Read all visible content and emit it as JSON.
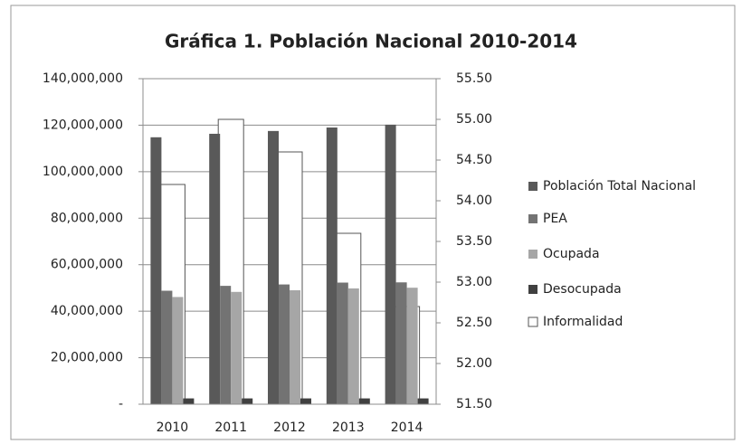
{
  "chart_data": {
    "type": "bar",
    "title": "Gráfica 1. Población Nacional 2010-2014",
    "categories": [
      "2010",
      "2011",
      "2012",
      "2013",
      "2014"
    ],
    "series": [
      {
        "name": "Población Total Nacional",
        "color": "#595959",
        "values": [
          114800000,
          116300000,
          117500000,
          119000000,
          120200000
        ]
      },
      {
        "name": "PEA",
        "color": "#737373",
        "values": [
          48800000,
          50900000,
          51500000,
          52300000,
          52400000
        ]
      },
      {
        "name": "Ocupada",
        "color": "#a6a6a6",
        "values": [
          46100000,
          48300000,
          49000000,
          49800000,
          50100000
        ]
      },
      {
        "name": "Desocupada",
        "color": "#404040",
        "values": [
          2500000,
          2500000,
          2500000,
          2500000,
          2500000
        ]
      },
      {
        "name": "Informalidad",
        "color": "#ffffff",
        "axis": "y2",
        "values": [
          54.2,
          55.0,
          54.6,
          53.6,
          52.7
        ]
      }
    ],
    "ylim": [
      0,
      140000000
    ],
    "yticks": [
      {
        "value": 0,
        "label": "-"
      },
      {
        "value": 20000000,
        "label": "20,000,000"
      },
      {
        "value": 40000000,
        "label": "40,000,000"
      },
      {
        "value": 60000000,
        "label": "60,000,000"
      },
      {
        "value": 80000000,
        "label": "80,000,000"
      },
      {
        "value": 100000000,
        "label": "100,000,000"
      },
      {
        "value": 120000000,
        "label": "120,000,000"
      },
      {
        "value": 140000000,
        "label": "140,000,000"
      }
    ],
    "y2lim": [
      51.5,
      55.5
    ],
    "y2ticks": [
      {
        "value": 51.5,
        "label": "51.50"
      },
      {
        "value": 52,
        "label": "52.00"
      },
      {
        "value": 52.5,
        "label": "52.50"
      },
      {
        "value": 53,
        "label": "53.00"
      },
      {
        "value": 53.5,
        "label": "53.50"
      },
      {
        "value": 54,
        "label": "54.00"
      },
      {
        "value": 54.5,
        "label": "54.50"
      },
      {
        "value": 55,
        "label": "55.00"
      },
      {
        "value": 55.5,
        "label": "55.50"
      }
    ],
    "grid": true,
    "legend": "right"
  }
}
